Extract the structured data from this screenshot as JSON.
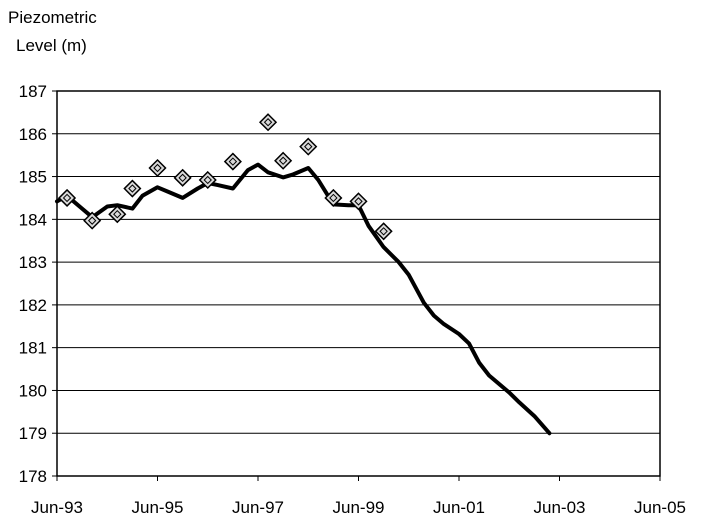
{
  "chart_data": {
    "type": "line",
    "ylabel_lines": [
      "Piezometric",
      "Level (m)"
    ],
    "xlabel": "",
    "title": "",
    "x_ticks": [
      "Jun-93",
      "Jun-95",
      "Jun-97",
      "Jun-99",
      "Jun-01",
      "Jun-03",
      "Jun-05"
    ],
    "x_tick_years": [
      1993.42,
      1995.42,
      1997.42,
      1999.42,
      2001.42,
      2003.42,
      2005.42
    ],
    "xlim": [
      1993.42,
      2005.42
    ],
    "y_ticks": [
      178,
      179,
      180,
      181,
      182,
      183,
      184,
      185,
      186,
      187
    ],
    "ylim": [
      178,
      187
    ],
    "grid": "horizontal",
    "colors": {
      "line": "#000000",
      "marker_fill": "#d9d9d9",
      "marker_stroke": "#000000",
      "grid": "#000000"
    },
    "series": [
      {
        "style": "line",
        "points": [
          [
            1993.42,
            184.42
          ],
          [
            1993.62,
            184.55
          ],
          [
            1993.92,
            184.25
          ],
          [
            1994.12,
            184.05
          ],
          [
            1994.42,
            184.3
          ],
          [
            1994.62,
            184.33
          ],
          [
            1994.92,
            184.25
          ],
          [
            1995.12,
            184.55
          ],
          [
            1995.42,
            184.75
          ],
          [
            1995.62,
            184.65
          ],
          [
            1995.92,
            184.5
          ],
          [
            1996.22,
            184.72
          ],
          [
            1996.42,
            184.85
          ],
          [
            1996.62,
            184.8
          ],
          [
            1996.92,
            184.72
          ],
          [
            1997.22,
            185.15
          ],
          [
            1997.42,
            185.28
          ],
          [
            1997.62,
            185.1
          ],
          [
            1997.92,
            184.98
          ],
          [
            1998.12,
            185.05
          ],
          [
            1998.42,
            185.2
          ],
          [
            1998.62,
            184.92
          ],
          [
            1998.92,
            184.35
          ],
          [
            1999.22,
            184.33
          ],
          [
            1999.42,
            184.33
          ],
          [
            1999.62,
            183.85
          ],
          [
            1999.92,
            183.35
          ],
          [
            2000.22,
            183.0
          ],
          [
            2000.42,
            182.7
          ],
          [
            2000.72,
            182.05
          ],
          [
            2000.92,
            181.75
          ],
          [
            2001.12,
            181.55
          ],
          [
            2001.42,
            181.32
          ],
          [
            2001.62,
            181.1
          ],
          [
            2001.82,
            180.65
          ],
          [
            2002.02,
            180.35
          ],
          [
            2002.42,
            179.95
          ],
          [
            2002.62,
            179.72
          ],
          [
            2002.92,
            179.4
          ],
          [
            2003.22,
            179.0
          ]
        ]
      },
      {
        "style": "markers",
        "marker": "diamond",
        "points": [
          [
            1993.62,
            184.5
          ],
          [
            1994.12,
            183.97
          ],
          [
            1994.62,
            184.12
          ],
          [
            1994.92,
            184.72
          ],
          [
            1995.42,
            185.2
          ],
          [
            1995.92,
            184.97
          ],
          [
            1996.42,
            184.92
          ],
          [
            1996.92,
            185.35
          ],
          [
            1997.62,
            186.27
          ],
          [
            1997.92,
            185.37
          ],
          [
            1998.42,
            185.7
          ],
          [
            1998.92,
            184.5
          ],
          [
            1999.42,
            184.42
          ],
          [
            1999.92,
            183.72
          ]
        ]
      }
    ]
  }
}
